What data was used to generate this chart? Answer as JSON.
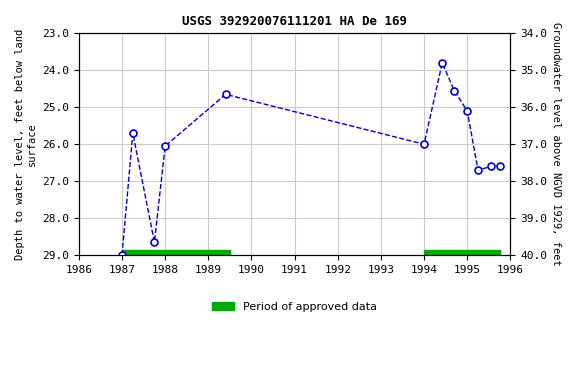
{
  "title": "USGS 392920076111201 HA De 169",
  "ylabel_left": "Depth to water level, feet below land\nsurface",
  "ylabel_right": "Groundwater level above NGVD 1929, feet",
  "xlim": [
    1986,
    1996
  ],
  "ylim_left": [
    23.0,
    29.0
  ],
  "ylim_right": [
    34.0,
    40.0
  ],
  "yticks_left": [
    23.0,
    24.0,
    25.0,
    26.0,
    27.0,
    28.0,
    29.0
  ],
  "yticks_right": [
    34.0,
    35.0,
    36.0,
    37.0,
    38.0,
    39.0,
    40.0
  ],
  "xticks": [
    1986,
    1987,
    1988,
    1989,
    1990,
    1991,
    1992,
    1993,
    1994,
    1995,
    1996
  ],
  "data_x": [
    1987.0,
    1987.25,
    1987.75,
    1988.0,
    1989.4,
    1994.0,
    1994.42,
    1994.7,
    1995.0,
    1995.25,
    1995.55,
    1995.75
  ],
  "data_y": [
    29.0,
    25.7,
    28.65,
    26.05,
    24.65,
    26.0,
    23.8,
    24.55,
    25.1,
    26.7,
    26.6,
    26.6
  ],
  "line_color": "#0000cc",
  "marker_color": "#0000cc",
  "marker_face": "white",
  "green_bar_color": "#00aa00",
  "green_bars": [
    {
      "x_start": 1987.0,
      "x_end": 1989.5
    },
    {
      "x_start": 1994.0,
      "x_end": 1995.75
    }
  ],
  "green_bar_y": 29.0,
  "green_bar_height": 0.13,
  "legend_label": "Period of approved data",
  "background_color": "#ffffff",
  "grid_color": "#cccccc"
}
